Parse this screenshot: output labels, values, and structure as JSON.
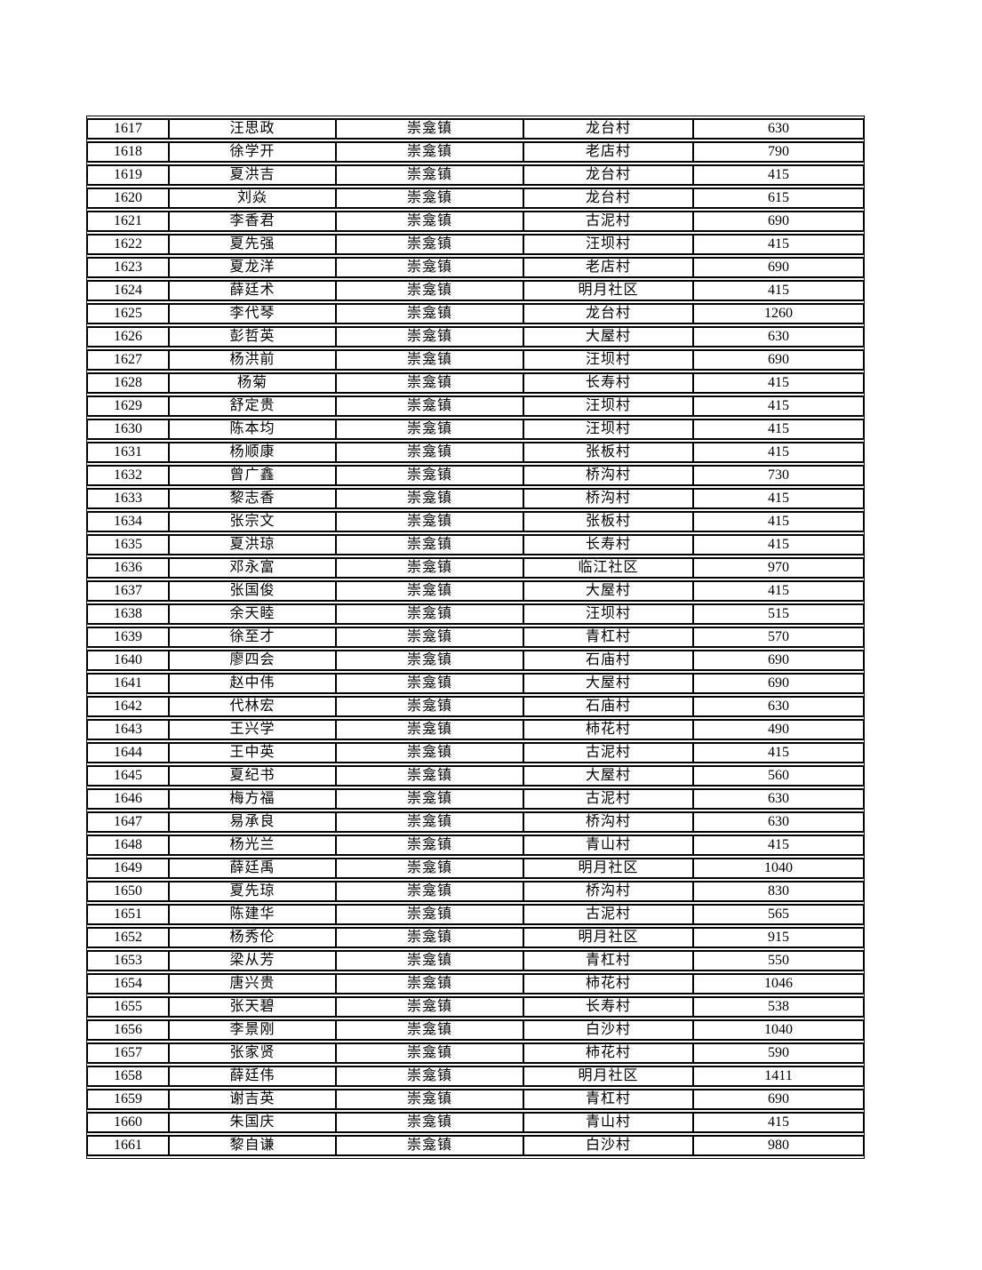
{
  "page": {
    "background_color": "#ffffff",
    "text_color": "#000000",
    "border_color": "#000000"
  },
  "table": {
    "rows": [
      {
        "no": "1617",
        "name": "汪思政",
        "town": "崇龛镇",
        "village": "龙台村",
        "amount": "630"
      },
      {
        "no": "1618",
        "name": "徐学开",
        "town": "崇龛镇",
        "village": "老店村",
        "amount": "790"
      },
      {
        "no": "1619",
        "name": "夏洪吉",
        "town": "崇龛镇",
        "village": "龙台村",
        "amount": "415"
      },
      {
        "no": "1620",
        "name": "刘焱",
        "town": "崇龛镇",
        "village": "龙台村",
        "amount": "615"
      },
      {
        "no": "1621",
        "name": "李香君",
        "town": "崇龛镇",
        "village": "古泥村",
        "amount": "690"
      },
      {
        "no": "1622",
        "name": "夏先强",
        "town": "崇龛镇",
        "village": "汪坝村",
        "amount": "415"
      },
      {
        "no": "1623",
        "name": "夏龙洋",
        "town": "崇龛镇",
        "village": "老店村",
        "amount": "690"
      },
      {
        "no": "1624",
        "name": "薛廷术",
        "town": "崇龛镇",
        "village": "明月社区",
        "amount": "415"
      },
      {
        "no": "1625",
        "name": "李代琴",
        "town": "崇龛镇",
        "village": "龙台村",
        "amount": "1260"
      },
      {
        "no": "1626",
        "name": "彭哲英",
        "town": "崇龛镇",
        "village": "大屋村",
        "amount": "630"
      },
      {
        "no": "1627",
        "name": "杨洪前",
        "town": "崇龛镇",
        "village": "汪坝村",
        "amount": "690"
      },
      {
        "no": "1628",
        "name": "杨菊",
        "town": "崇龛镇",
        "village": "长寿村",
        "amount": "415"
      },
      {
        "no": "1629",
        "name": "舒定贵",
        "town": "崇龛镇",
        "village": "汪坝村",
        "amount": "415"
      },
      {
        "no": "1630",
        "name": "陈本均",
        "town": "崇龛镇",
        "village": "汪坝村",
        "amount": "415"
      },
      {
        "no": "1631",
        "name": "杨顺康",
        "town": "崇龛镇",
        "village": "张板村",
        "amount": "415"
      },
      {
        "no": "1632",
        "name": "曾广鑫",
        "town": "崇龛镇",
        "village": "桥沟村",
        "amount": "730"
      },
      {
        "no": "1633",
        "name": "黎志香",
        "town": "崇龛镇",
        "village": "桥沟村",
        "amount": "415"
      },
      {
        "no": "1634",
        "name": "张宗文",
        "town": "崇龛镇",
        "village": "张板村",
        "amount": "415"
      },
      {
        "no": "1635",
        "name": "夏洪琼",
        "town": "崇龛镇",
        "village": "长寿村",
        "amount": "415"
      },
      {
        "no": "1636",
        "name": "邓永富",
        "town": "崇龛镇",
        "village": "临江社区",
        "amount": "970"
      },
      {
        "no": "1637",
        "name": "张国俊",
        "town": "崇龛镇",
        "village": "大屋村",
        "amount": "415"
      },
      {
        "no": "1638",
        "name": "余天睦",
        "town": "崇龛镇",
        "village": "汪坝村",
        "amount": "515"
      },
      {
        "no": "1639",
        "name": "徐至才",
        "town": "崇龛镇",
        "village": "青杠村",
        "amount": "570"
      },
      {
        "no": "1640",
        "name": "廖四会",
        "town": "崇龛镇",
        "village": "石庙村",
        "amount": "690"
      },
      {
        "no": "1641",
        "name": "赵中伟",
        "town": "崇龛镇",
        "village": "大屋村",
        "amount": "690"
      },
      {
        "no": "1642",
        "name": "代林宏",
        "town": "崇龛镇",
        "village": "石庙村",
        "amount": "630"
      },
      {
        "no": "1643",
        "name": "王兴学",
        "town": "崇龛镇",
        "village": "柿花村",
        "amount": "490"
      },
      {
        "no": "1644",
        "name": "王中英",
        "town": "崇龛镇",
        "village": "古泥村",
        "amount": "415"
      },
      {
        "no": "1645",
        "name": "夏纪书",
        "town": "崇龛镇",
        "village": "大屋村",
        "amount": "560"
      },
      {
        "no": "1646",
        "name": "梅方福",
        "town": "崇龛镇",
        "village": "古泥村",
        "amount": "630"
      },
      {
        "no": "1647",
        "name": "易承良",
        "town": "崇龛镇",
        "village": "桥沟村",
        "amount": "630"
      },
      {
        "no": "1648",
        "name": "杨光兰",
        "town": "崇龛镇",
        "village": "青山村",
        "amount": "415"
      },
      {
        "no": "1649",
        "name": "薛廷禹",
        "town": "崇龛镇",
        "village": "明月社区",
        "amount": "1040"
      },
      {
        "no": "1650",
        "name": "夏先琼",
        "town": "崇龛镇",
        "village": "桥沟村",
        "amount": "830"
      },
      {
        "no": "1651",
        "name": "陈建华",
        "town": "崇龛镇",
        "village": "古泥村",
        "amount": "565"
      },
      {
        "no": "1652",
        "name": "杨秀伦",
        "town": "崇龛镇",
        "village": "明月社区",
        "amount": "915"
      },
      {
        "no": "1653",
        "name": "梁从芳",
        "town": "崇龛镇",
        "village": "青杠村",
        "amount": "550"
      },
      {
        "no": "1654",
        "name": "唐兴贵",
        "town": "崇龛镇",
        "village": "柿花村",
        "amount": "1046"
      },
      {
        "no": "1655",
        "name": "张天碧",
        "town": "崇龛镇",
        "village": "长寿村",
        "amount": "538"
      },
      {
        "no": "1656",
        "name": "李景刚",
        "town": "崇龛镇",
        "village": "白沙村",
        "amount": "1040"
      },
      {
        "no": "1657",
        "name": "张家贤",
        "town": "崇龛镇",
        "village": "柿花村",
        "amount": "590"
      },
      {
        "no": "1658",
        "name": "薛廷伟",
        "town": "崇龛镇",
        "village": "明月社区",
        "amount": "1411"
      },
      {
        "no": "1659",
        "name": "谢吉英",
        "town": "崇龛镇",
        "village": "青杠村",
        "amount": "690"
      },
      {
        "no": "1660",
        "name": "朱国庆",
        "town": "崇龛镇",
        "village": "青山村",
        "amount": "415"
      },
      {
        "no": "1661",
        "name": "黎自谦",
        "town": "崇龛镇",
        "village": "白沙村",
        "amount": "980"
      }
    ]
  }
}
